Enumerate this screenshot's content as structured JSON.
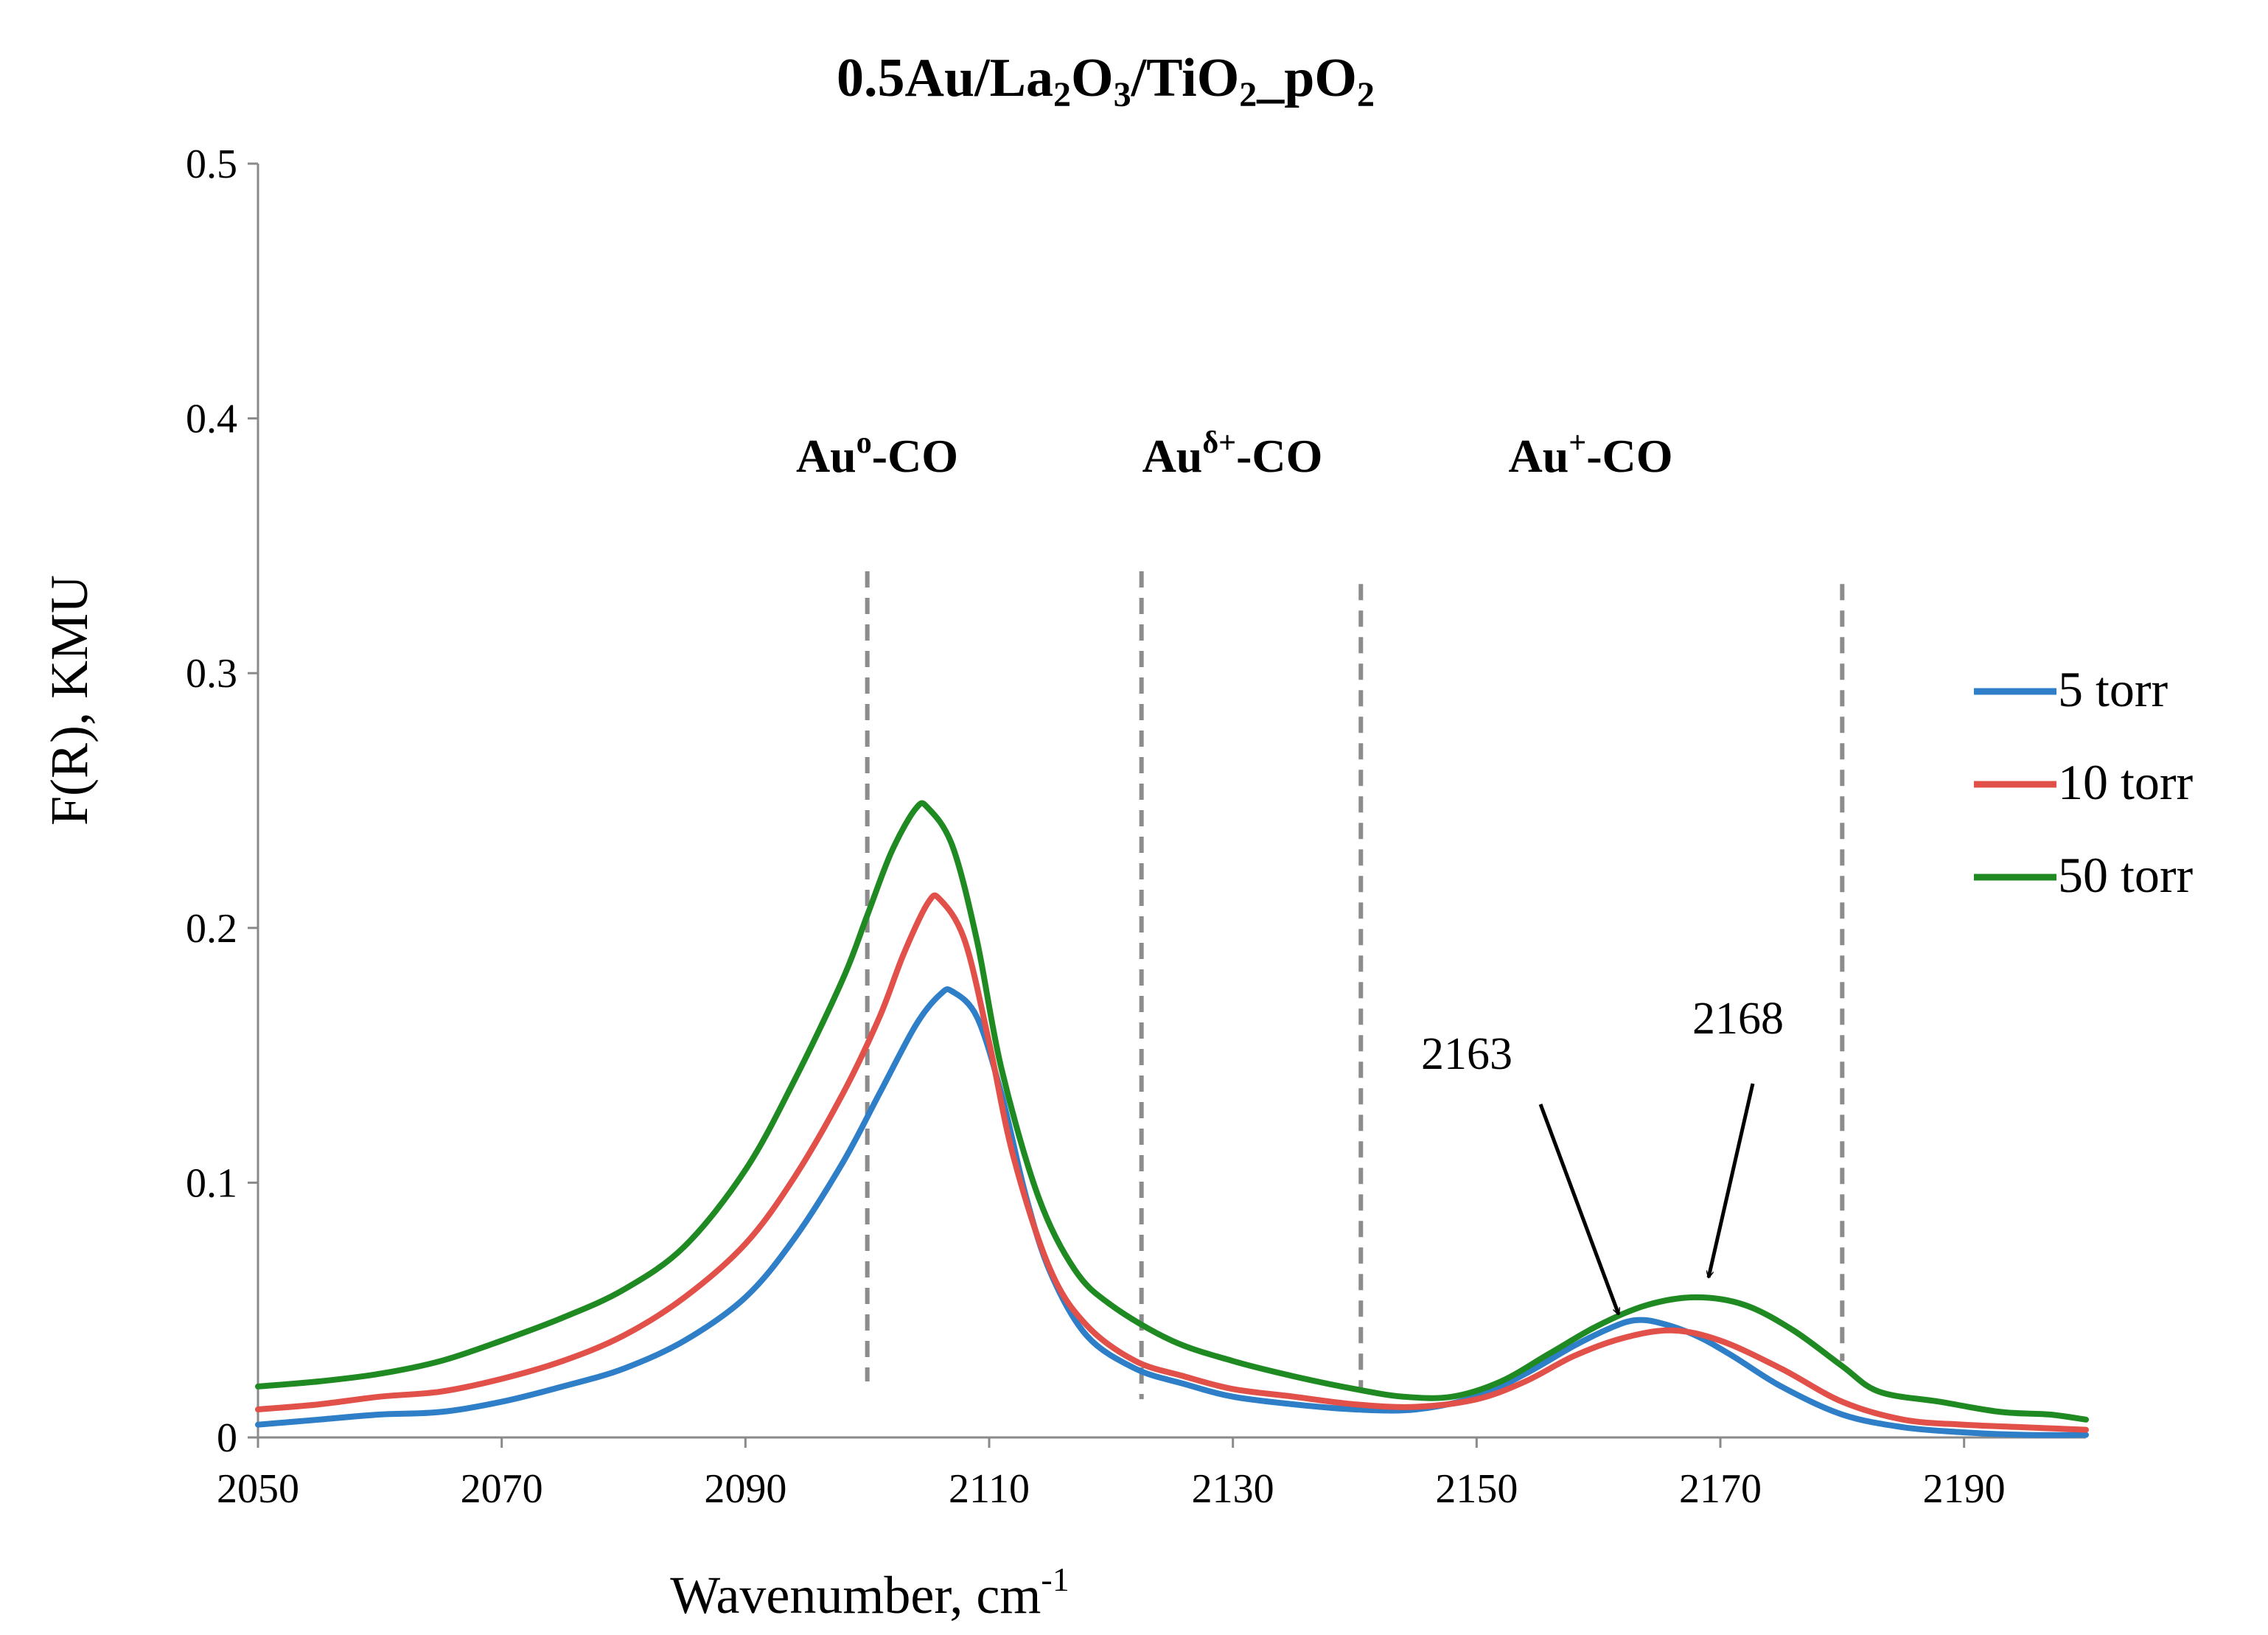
{
  "chart_data": {
    "type": "line",
    "title": {
      "prefix": "0.5Au/La",
      "s1": "2",
      "mid1": "O",
      "s2": "3",
      "mid2": "/TiO",
      "s3": "2",
      "mid3": "_pO",
      "s4": "2"
    },
    "xlabel": {
      "text": "Wavenumber, cm",
      "sup": "-1"
    },
    "ylabel": "F(R), KMU",
    "xlim": [
      2050,
      2200
    ],
    "ylim": [
      0,
      0.5
    ],
    "x_ticks": [
      2050,
      2070,
      2090,
      2110,
      2130,
      2150,
      2170,
      2190
    ],
    "y_ticks": [
      {
        "value": 0,
        "label": "0"
      },
      {
        "value": 0.1,
        "label": "0.1"
      },
      {
        "value": 0.2,
        "label": "0.2"
      },
      {
        "value": 0.3,
        "label": "0.3"
      },
      {
        "value": 0.4,
        "label": "0.4"
      },
      {
        "value": 0.5,
        "label": "0.5"
      }
    ],
    "grid": false,
    "legend_position": "right",
    "series": [
      {
        "name": "5 torr",
        "color": "#2e7ec8",
        "x": [
          2050,
          2055,
          2060,
          2065,
          2070,
          2075,
          2080,
          2085,
          2090,
          2094,
          2098,
          2101,
          2104,
          2106,
          2107,
          2109,
          2111,
          2113,
          2115,
          2118,
          2122,
          2126,
          2130,
          2135,
          2140,
          2145,
          2150,
          2154,
          2158,
          2161,
          2163,
          2165,
          2168,
          2171,
          2175,
          2180,
          2185,
          2190,
          2195,
          2200
        ],
        "y": [
          0.005,
          0.007,
          0.009,
          0.01,
          0.014,
          0.02,
          0.027,
          0.038,
          0.055,
          0.078,
          0.108,
          0.135,
          0.162,
          0.174,
          0.175,
          0.165,
          0.135,
          0.095,
          0.065,
          0.04,
          0.027,
          0.021,
          0.016,
          0.013,
          0.011,
          0.011,
          0.016,
          0.025,
          0.036,
          0.043,
          0.046,
          0.045,
          0.04,
          0.032,
          0.02,
          0.009,
          0.004,
          0.002,
          0.001,
          0.001
        ]
      },
      {
        "name": "10 torr",
        "color": "#e2504a",
        "x": [
          2050,
          2055,
          2060,
          2065,
          2070,
          2075,
          2080,
          2085,
          2090,
          2094,
          2098,
          2101,
          2103,
          2105,
          2106,
          2108,
          2110,
          2112,
          2115,
          2118,
          2122,
          2126,
          2130,
          2135,
          2140,
          2145,
          2150,
          2154,
          2158,
          2162,
          2166,
          2170,
          2175,
          2180,
          2185,
          2190,
          2195,
          2200
        ],
        "y": [
          0.011,
          0.013,
          0.016,
          0.018,
          0.023,
          0.03,
          0.04,
          0.055,
          0.076,
          0.102,
          0.135,
          0.165,
          0.19,
          0.21,
          0.211,
          0.195,
          0.155,
          0.11,
          0.066,
          0.044,
          0.03,
          0.024,
          0.019,
          0.016,
          0.013,
          0.012,
          0.015,
          0.022,
          0.032,
          0.039,
          0.042,
          0.038,
          0.027,
          0.014,
          0.007,
          0.005,
          0.004,
          0.003
        ]
      },
      {
        "name": "50 torr",
        "color": "#1f8a22",
        "x": [
          2050,
          2055,
          2060,
          2065,
          2070,
          2075,
          2080,
          2085,
          2090,
          2094,
          2098,
          2100,
          2102,
          2104,
          2105,
          2107,
          2109,
          2111,
          2114,
          2117,
          2120,
          2125,
          2130,
          2135,
          2140,
          2144,
          2148,
          2152,
          2156,
          2160,
          2164,
          2168,
          2172,
          2176,
          2180,
          2183,
          2188,
          2193,
          2197,
          2200
        ],
        "y": [
          0.02,
          0.022,
          0.025,
          0.03,
          0.038,
          0.047,
          0.058,
          0.075,
          0.105,
          0.14,
          0.18,
          0.205,
          0.23,
          0.247,
          0.247,
          0.232,
          0.195,
          0.145,
          0.095,
          0.066,
          0.052,
          0.038,
          0.03,
          0.024,
          0.019,
          0.016,
          0.016,
          0.022,
          0.033,
          0.044,
          0.052,
          0.055,
          0.052,
          0.042,
          0.028,
          0.018,
          0.014,
          0.01,
          0.009,
          0.007
        ]
      }
    ],
    "reference_lines": [
      2100,
      2122.5,
      2140.5,
      2180
    ],
    "region_labels": [
      {
        "id": "au0",
        "base": "Au",
        "sup": "o",
        "suffix": "-CO",
        "x": 2110
      },
      {
        "id": "audelta",
        "base": "Au",
        "sup": "δ+",
        "suffix": "-CO",
        "x": 2131
      },
      {
        "id": "auplus",
        "base": "Au",
        "sup": "+",
        "suffix": "-CO",
        "x": 2159
      }
    ],
    "peak_annotations": [
      {
        "label": "2163",
        "x": 2163,
        "y": 0.046
      },
      {
        "label": "2168",
        "x": 2168,
        "y": 0.055
      }
    ]
  }
}
